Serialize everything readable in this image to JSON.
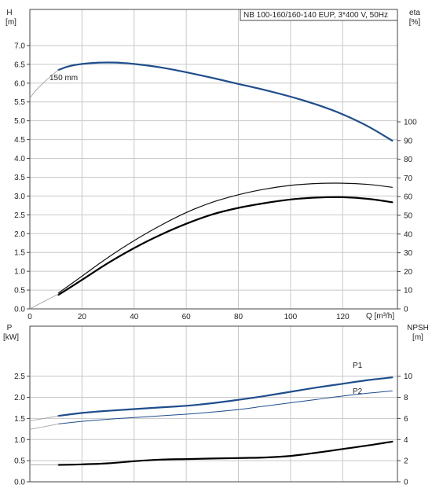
{
  "chart_data": [
    {
      "type": "line",
      "panel": "top",
      "title": "NB 100-160/160-140 EUP, 3*400 V, 50Hz",
      "left_axis": {
        "label": "H",
        "unit": "[m]",
        "ylim": [
          0,
          7.5
        ],
        "ticks": [
          "0.0",
          "0.5",
          "1.0",
          "1.5",
          "2.0",
          "2.5",
          "3.0",
          "3.5",
          "4.0",
          "4.5",
          "5.0",
          "5.5",
          "6.0",
          "6.5",
          "7.0"
        ]
      },
      "right_axis": {
        "label": "eta",
        "unit": "[%]",
        "ylim": [
          0,
          100
        ],
        "ticks": [
          "0",
          "10",
          "20",
          "30",
          "40",
          "50",
          "60",
          "70",
          "80",
          "90",
          "100"
        ]
      },
      "x_axis": {
        "label": "Q [m³/h]",
        "xlim": [
          0,
          141
        ],
        "ticks": [
          "0",
          "20",
          "40",
          "60",
          "80",
          "100",
          "120"
        ]
      },
      "annotations": [
        {
          "text": "150 mm"
        }
      ],
      "series": [
        {
          "id": "H_curve",
          "axis": "left",
          "color": "#1f4e8c",
          "width": 2.2,
          "x": [
            11,
            15,
            20,
            25,
            30,
            35,
            40,
            50,
            60,
            70,
            80,
            90,
            100,
            110,
            120,
            130,
            139
          ],
          "y": [
            6.35,
            6.45,
            6.51,
            6.54,
            6.55,
            6.54,
            6.51,
            6.42,
            6.29,
            6.14,
            5.98,
            5.82,
            5.64,
            5.43,
            5.17,
            4.84,
            4.47
          ]
        },
        {
          "id": "H_extension",
          "axis": "left",
          "color": "#9a9a9a",
          "width": 0.8,
          "x": [
            0,
            2,
            4,
            6,
            8,
            10,
            11
          ],
          "y": [
            5.6,
            5.78,
            5.93,
            6.06,
            6.18,
            6.3,
            6.35
          ]
        },
        {
          "id": "eta_upper",
          "axis": "right",
          "color": "#111111",
          "width": 1.2,
          "x": [
            11,
            20,
            30,
            40,
            50,
            60,
            70,
            80,
            90,
            100,
            110,
            120,
            130,
            139
          ],
          "y": [
            8.5,
            17.5,
            27.5,
            36.5,
            44.5,
            51.5,
            57,
            61,
            64,
            66,
            67,
            67.2,
            66.5,
            65
          ]
        },
        {
          "id": "eta_lower",
          "axis": "right",
          "color": "#000000",
          "width": 2.2,
          "x": [
            11,
            20,
            30,
            40,
            50,
            60,
            70,
            80,
            90,
            100,
            110,
            120,
            130,
            139
          ],
          "y": [
            7.5,
            15.5,
            24.5,
            32.5,
            39.5,
            45.5,
            50.5,
            54,
            56.5,
            58.5,
            59.5,
            59.7,
            58.8,
            57
          ]
        },
        {
          "id": "eta_extension",
          "axis": "right",
          "color": "#9a9a9a",
          "width": 0.8,
          "x": [
            0,
            11
          ],
          "y": [
            0,
            8
          ]
        }
      ]
    },
    {
      "type": "line",
      "panel": "bottom",
      "left_axis": {
        "label": "P",
        "unit": "[kW]",
        "ylim": [
          0,
          3.2
        ],
        "ticks": [
          "0.0",
          "0.5",
          "1.0",
          "1.5",
          "2.0",
          "2.5"
        ]
      },
      "right_axis": {
        "label": "NPSH",
        "unit": "[m]",
        "ylim": [
          0,
          12.8
        ],
        "ticks": [
          "0",
          "2",
          "4",
          "6",
          "8",
          "10"
        ]
      },
      "x_axis": {
        "xlim": [
          0,
          141
        ],
        "ticks": []
      },
      "series": [
        {
          "id": "P1",
          "name": "P1",
          "axis": "left",
          "color": "#1f4e8c",
          "width": 2.2,
          "x": [
            11,
            20,
            30,
            40,
            50,
            60,
            70,
            80,
            90,
            100,
            110,
            120,
            130,
            139
          ],
          "y": [
            1.56,
            1.63,
            1.68,
            1.72,
            1.76,
            1.8,
            1.86,
            1.94,
            2.03,
            2.13,
            2.23,
            2.32,
            2.41,
            2.47
          ]
        },
        {
          "id": "P1_extension",
          "axis": "left",
          "color": "#9a9a9a",
          "width": 0.8,
          "x": [
            0,
            11
          ],
          "y": [
            1.44,
            1.56
          ]
        },
        {
          "id": "P2",
          "name": "P2",
          "axis": "left",
          "color": "#1f4e8c",
          "width": 1.0,
          "x": [
            11,
            20,
            30,
            40,
            50,
            60,
            70,
            80,
            90,
            100,
            110,
            120,
            130,
            139
          ],
          "y": [
            1.37,
            1.43,
            1.48,
            1.52,
            1.56,
            1.6,
            1.65,
            1.71,
            1.79,
            1.87,
            1.95,
            2.03,
            2.1,
            2.15
          ]
        },
        {
          "id": "P2_extension",
          "axis": "left",
          "color": "#9a9a9a",
          "width": 0.8,
          "x": [
            0,
            11
          ],
          "y": [
            1.24,
            1.37
          ]
        },
        {
          "id": "NPSH",
          "axis": "right",
          "color": "#000000",
          "width": 2.2,
          "x": [
            11,
            20,
            30,
            40,
            50,
            60,
            70,
            80,
            90,
            100,
            110,
            120,
            130,
            139
          ],
          "y": [
            1.6,
            1.65,
            1.75,
            1.95,
            2.1,
            2.15,
            2.2,
            2.25,
            2.3,
            2.45,
            2.75,
            3.1,
            3.45,
            3.8
          ]
        },
        {
          "id": "NPSH_extension",
          "axis": "right",
          "color": "#9a9a9a",
          "width": 0.8,
          "x": [
            0,
            11
          ],
          "y": [
            1.62,
            1.6
          ]
        }
      ]
    }
  ]
}
